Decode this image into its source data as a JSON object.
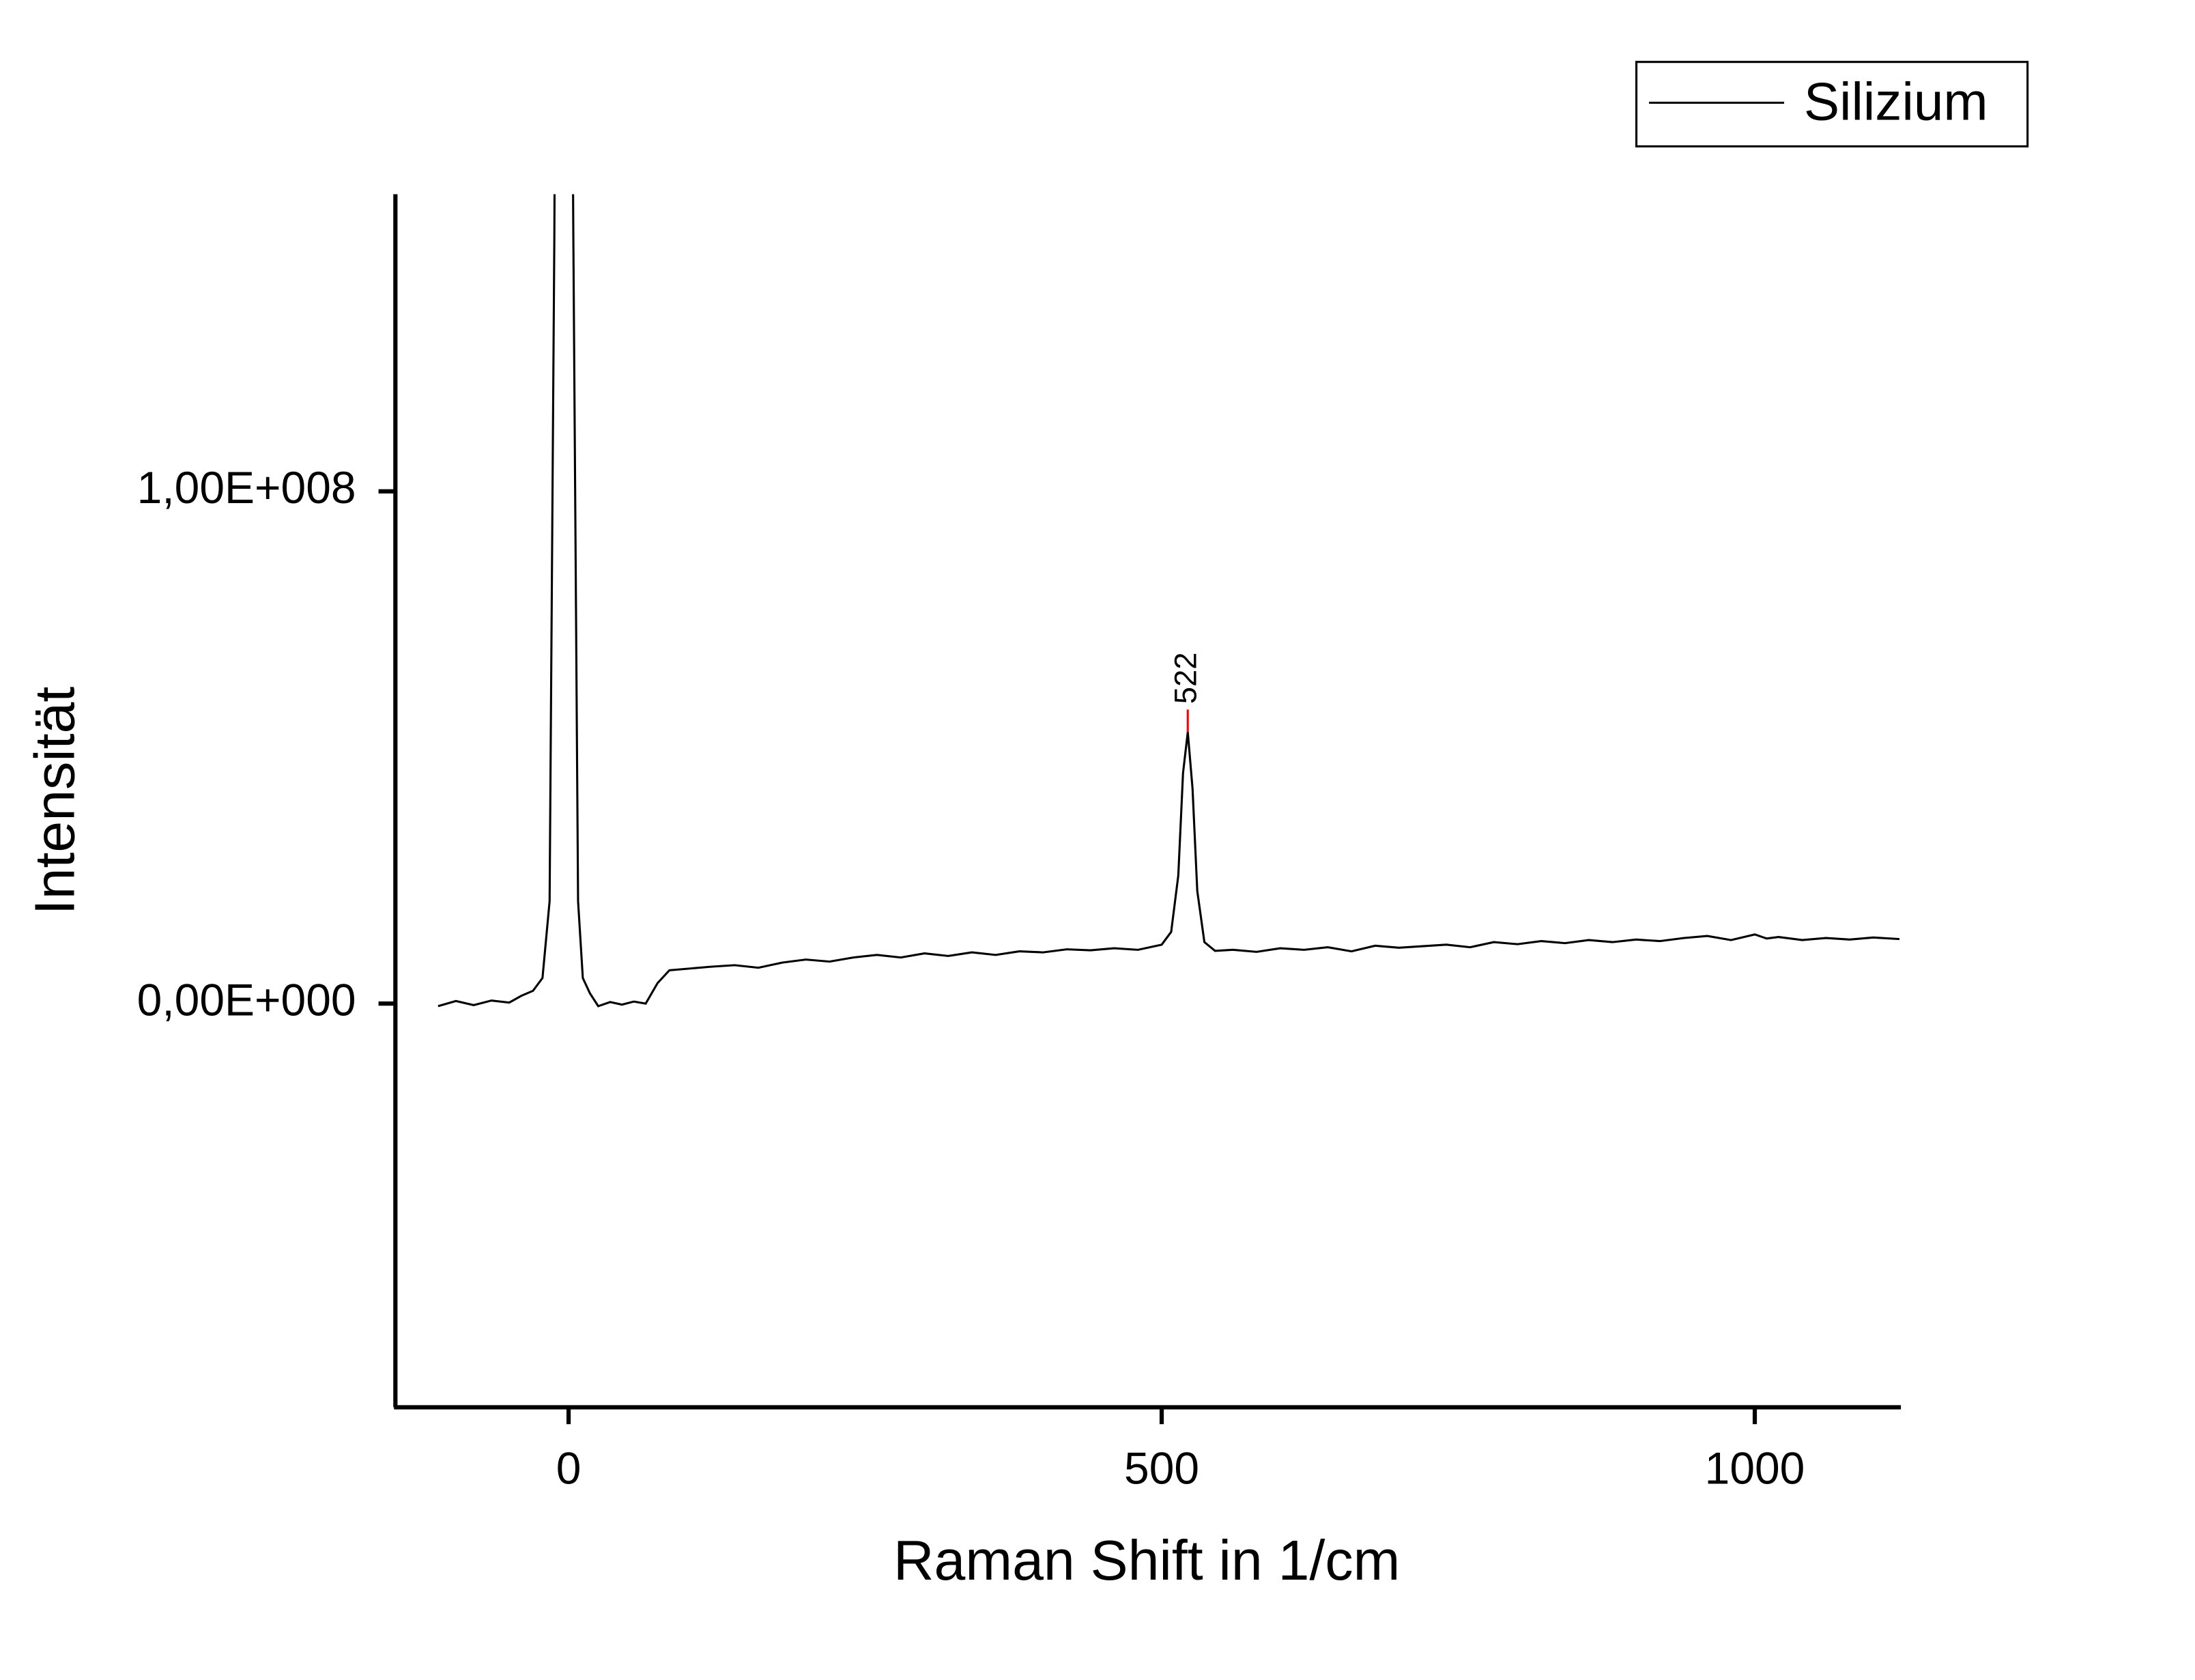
{
  "chart_data": {
    "type": "line",
    "x_label": "Raman Shift in 1/cm",
    "y_label": "Intensität",
    "xlim": [
      -146,
      1122
    ],
    "ylim": [
      -78800000,
      158000000
    ],
    "xticks": [
      0,
      500,
      1000
    ],
    "yticks": [
      {
        "value": 0,
        "label": "0,00E+000"
      },
      {
        "value": 100000000,
        "label": "1,00E+008"
      }
    ],
    "legend": "top-right",
    "x": [
      -110,
      -95,
      -80,
      -65,
      -50,
      -40,
      -30,
      -22,
      -16,
      -12,
      -9,
      0,
      4,
      8,
      12,
      18,
      25,
      35,
      45,
      55,
      65,
      75,
      85,
      100,
      120,
      140,
      160,
      180,
      200,
      220,
      240,
      260,
      280,
      300,
      320,
      340,
      360,
      380,
      400,
      420,
      440,
      460,
      480,
      500,
      508,
      514,
      518,
      522,
      526,
      530,
      536,
      545,
      560,
      580,
      600,
      620,
      640,
      660,
      680,
      700,
      720,
      740,
      760,
      780,
      800,
      820,
      840,
      860,
      880,
      900,
      920,
      940,
      960,
      980,
      1000,
      1010,
      1020,
      1040,
      1060,
      1080,
      1100,
      1122
    ],
    "series": [
      {
        "name": "Silizium",
        "color": "#000000",
        "values": [
          -500000.0,
          500000.0,
          -300000.0,
          600000.0,
          200000.0,
          1500000.0,
          2500000.0,
          5000000.0,
          20000000.0,
          150000000.0,
          300000000.0,
          300000000.0,
          150000000.0,
          20000000.0,
          5000000.0,
          2000000.0,
          -500000.0,
          300000.0,
          -200000.0,
          400000.0,
          0,
          4000000.0,
          6500000.0,
          6800000.0,
          7200000.0,
          7500000.0,
          7000000.0,
          8000000.0,
          8600000.0,
          8200000.0,
          9000000.0,
          9500000.0,
          9000000.0,
          9800000.0,
          9300000.0,
          10000000.0,
          9500000.0,
          10200000.0,
          10000000.0,
          10600000.0,
          10400000.0,
          10800000.0,
          10500000.0,
          11500000.0,
          14000000.0,
          25000000.0,
          45000000.0,
          53000000.0,
          42000000.0,
          22000000.0,
          12000000.0,
          10300000.0,
          10500000.0,
          10100000.0,
          10800000.0,
          10500000.0,
          11000000.0,
          10200000.0,
          11300000.0,
          10900000.0,
          11200000.0,
          11500000.0,
          11000000.0,
          12000000.0,
          11600000.0,
          12200000.0,
          11800000.0,
          12400000.0,
          12000000.0,
          12500000.0,
          12200000.0,
          12800000.0,
          13200000.0,
          12400000.0,
          13500000.0,
          12700000.0,
          13000000.0,
          12400000.0,
          12800000.0,
          12500000.0,
          12900000.0,
          12600000.0
        ]
      }
    ],
    "annotations": [
      {
        "text": "522",
        "x": 522,
        "y": 53000000,
        "color": "#ff0000"
      }
    ]
  }
}
